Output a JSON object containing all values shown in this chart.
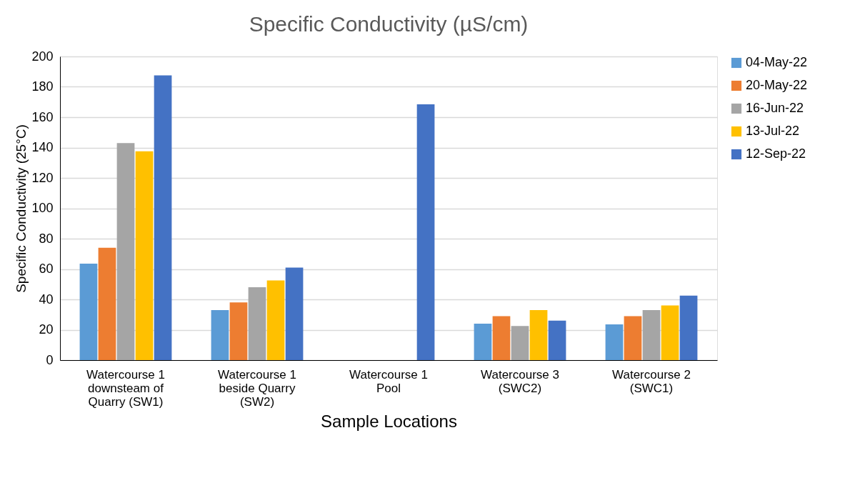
{
  "chart_data": {
    "type": "bar",
    "title": "Specific Conductivity (µS/cm)",
    "xlabel": "Sample Locations",
    "ylabel": "Specific Conductivity (25°C)",
    "categories": [
      "Watercourse 1\ndownsteam of\nQuarry (SW1)",
      "Watercourse 1\nbeside Quarry\n(SW2)",
      "Watercourse 1\nPool",
      "Watercourse 3\n(SWC2)",
      "Watercourse 2\n(SWC1)"
    ],
    "series": [
      {
        "name": "04-May-22",
        "color": "#5b9bd5",
        "values": [
          63.5,
          33,
          null,
          24,
          23.5
        ]
      },
      {
        "name": "20-May-22",
        "color": "#ed7d31",
        "values": [
          74,
          38,
          null,
          29,
          29
        ]
      },
      {
        "name": "16-Jun-22",
        "color": "#a5a5a5",
        "values": [
          143,
          48,
          null,
          22.5,
          33
        ]
      },
      {
        "name": "13-Jul-22",
        "color": "#ffc000",
        "values": [
          137.5,
          52.5,
          null,
          33,
          36
        ]
      },
      {
        "name": "12-Sep-22",
        "color": "#4472c4",
        "values": [
          187.5,
          61,
          168.5,
          26,
          42.5
        ]
      }
    ],
    "ylim": [
      0,
      200
    ],
    "yticks": [
      0,
      20,
      40,
      60,
      80,
      100,
      120,
      140,
      160,
      180,
      200
    ],
    "grid": "y",
    "legend": "right"
  }
}
